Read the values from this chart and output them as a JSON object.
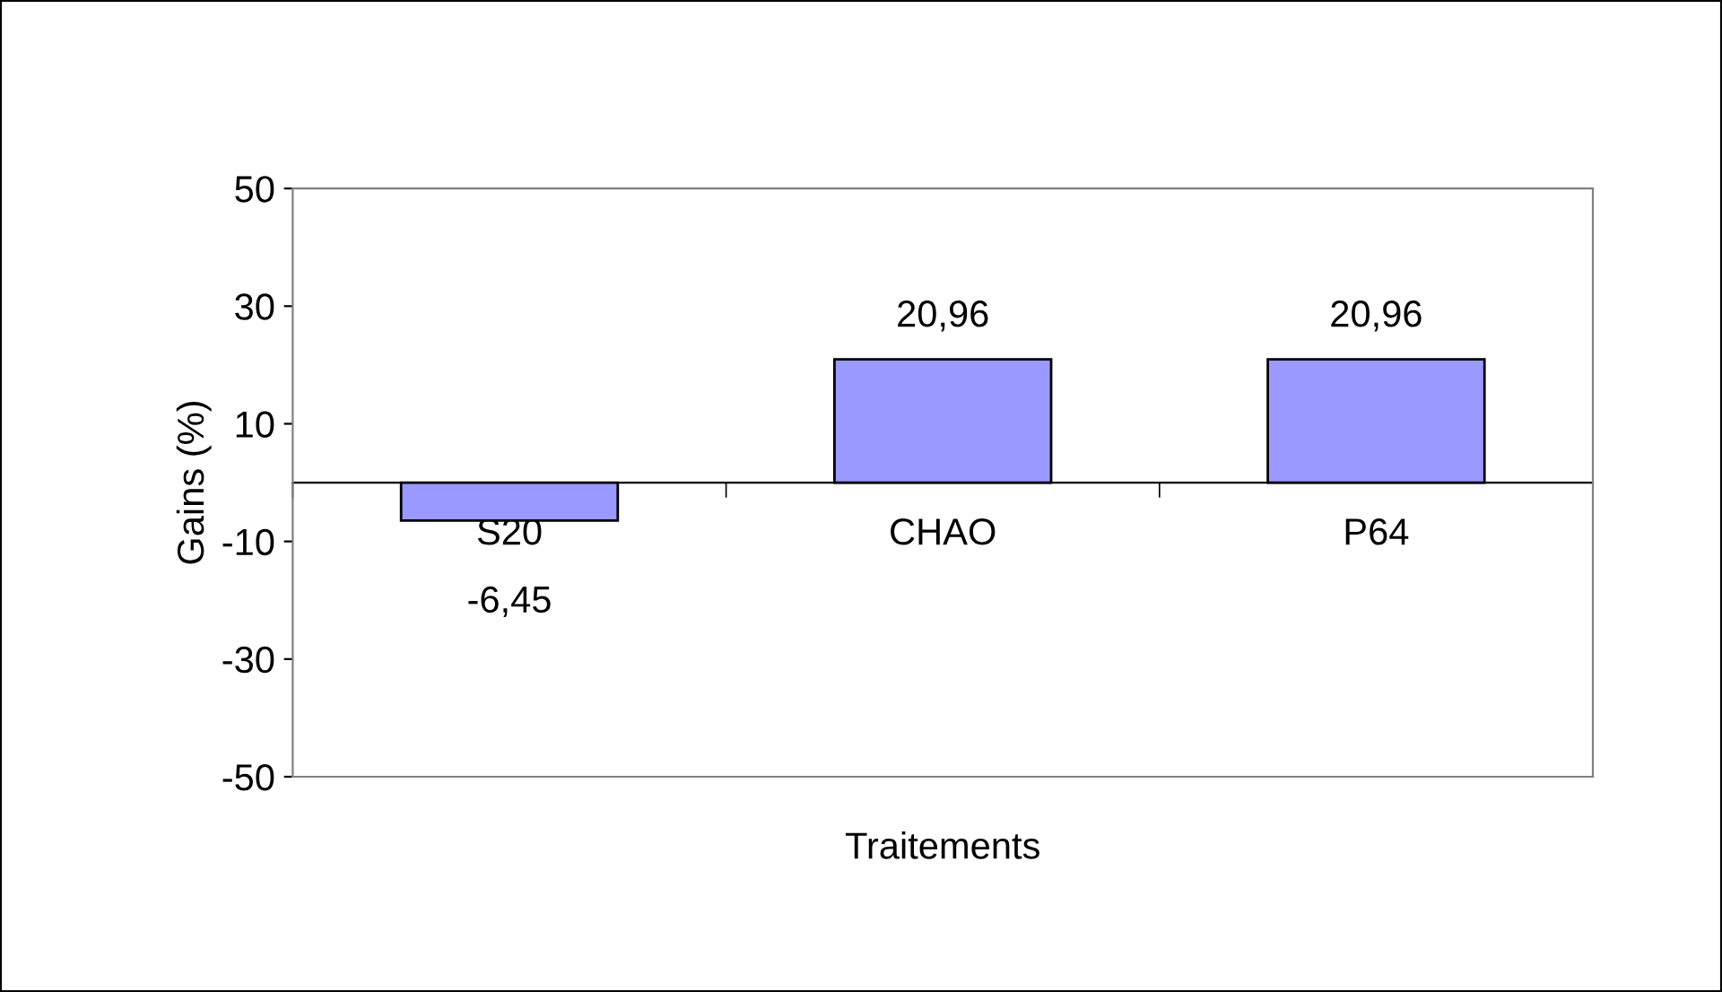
{
  "chart_data": {
    "type": "bar",
    "xlabel": "Traitements",
    "ylabel": "Gains (%)",
    "categories": [
      "S20",
      "CHAO",
      "P64"
    ],
    "values": [
      -6.45,
      20.96,
      20.96
    ],
    "value_labels": [
      "-6,45",
      "20,96",
      "20,96"
    ],
    "color": "#9999ff",
    "ylim": [
      -50,
      50
    ],
    "yticks": [
      -50,
      -30,
      -10,
      10,
      30,
      50
    ],
    "grid": false,
    "legend": false
  }
}
